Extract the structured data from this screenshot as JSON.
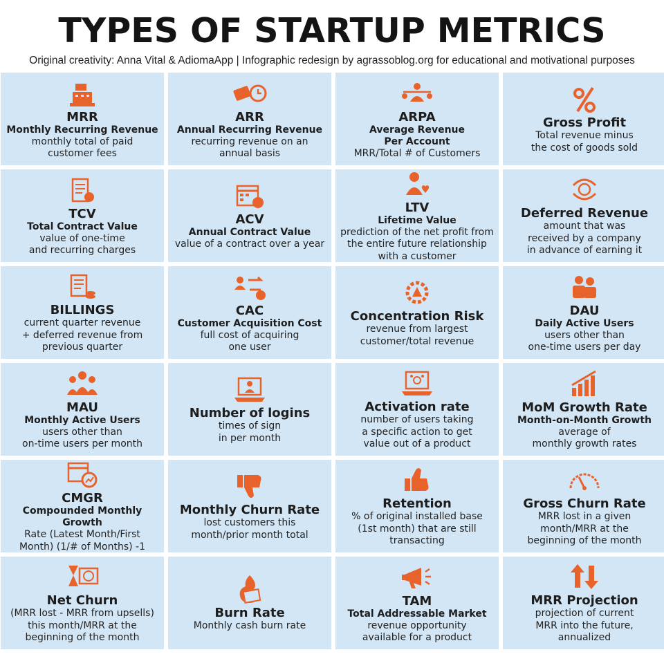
{
  "header": {
    "title": "TYPES OF STARTUP METRICS",
    "subtitle": "Original creativity: Anna Vital & AdiomaApp | Infographic redesign by agrassoblog.org for educational and motivational purposes"
  },
  "colors": {
    "accent": "#e8622c",
    "cell_bg": "#d3e6f5",
    "text": "#1d1d1d"
  },
  "metrics": [
    {
      "icon": "cash-register-icon",
      "name": "MRR",
      "full": "Monthly Recurring Revenue",
      "desc": "monthly total of paid\ncustomer fees"
    },
    {
      "icon": "money-clock-icon",
      "name": "ARR",
      "full": "Annual Recurring Revenue",
      "desc": "recurring revenue on an\nannual basis"
    },
    {
      "icon": "balance-person-icon",
      "name": "ARPA",
      "full": "Average Revenue\nPer Account",
      "desc": "MRR/Total # of Customers"
    },
    {
      "icon": "percent-icon",
      "name": "Gross Profit",
      "full": "",
      "desc": "Total revenue minus\nthe cost of goods sold"
    },
    {
      "icon": "contract-icon",
      "name": "TCV",
      "full": "Total Contract Value",
      "desc": "value of one-time\nand recurring charges"
    },
    {
      "icon": "calendar-money-icon",
      "name": "ACV",
      "full": "Annual Contract Value",
      "desc": "value of a contract over a year"
    },
    {
      "icon": "person-heart-icon",
      "name": "LTV",
      "full": "Lifetime Value",
      "desc": "prediction of the net profit from\nthe entire future relationship\nwith a customer"
    },
    {
      "icon": "money-cycle-icon",
      "name": "Deferred Revenue",
      "full": "",
      "desc": "amount that was\nreceived by a company\nin advance of earning it"
    },
    {
      "icon": "bill-coins-icon",
      "name": "BILLINGS",
      "full": "",
      "desc": "current quarter revenue\n+ deferred revenue from\nprevious quarter"
    },
    {
      "icon": "user-exchange-icon",
      "name": "CAC",
      "full": "Customer Acquisition Cost",
      "desc": "full cost of acquiring\none user"
    },
    {
      "icon": "gear-warning-icon",
      "name": "Concentration Risk",
      "full": "",
      "desc": "revenue from largest\ncustomer/total revenue"
    },
    {
      "icon": "users-pair-icon",
      "name": "DAU",
      "full": "Daily Active Users",
      "desc": "users other than\none-time users per day"
    },
    {
      "icon": "group-icon",
      "name": "MAU",
      "full": "Monthly Active Users",
      "desc": "users other than\non-time users per month"
    },
    {
      "icon": "laptop-user-icon",
      "name": "Number of logins",
      "full": "",
      "desc": "times of sign\nin per month"
    },
    {
      "icon": "laptop-network-icon",
      "name": "Activation rate",
      "full": "",
      "desc": "number of users taking\na specific action to get\nvalue out of a product"
    },
    {
      "icon": "bar-growth-icon",
      "name": "MoM Growth Rate",
      "full": "Month-on-Month Growth",
      "desc": "average of\nmonthly growth rates"
    },
    {
      "icon": "calendar-chart-icon",
      "name": "CMGR",
      "full": "Compounded Monthly Growth",
      "desc": "Rate (Latest Month/First\nMonth) (1/# of Months) -1"
    },
    {
      "icon": "thumbs-down-icon",
      "name": "Monthly Churn Rate",
      "full": "",
      "desc": "lost customers this\nmonth/prior month total"
    },
    {
      "icon": "thumbs-up-icon",
      "name": "Retention",
      "full": "",
      "desc": "% of original installed base\n(1st month) that are still\ntransacting"
    },
    {
      "icon": "gauge-icon",
      "name": "Gross Churn Rate",
      "full": "",
      "desc": "MRR lost in a given\nmonth/MRR at the\nbeginning of the month"
    },
    {
      "icon": "hourglass-money-icon",
      "name": "Net Churn",
      "full": "",
      "desc": "(MRR lost - MRR from upsells)\nthis month/MRR at the\nbeginning of the month"
    },
    {
      "icon": "burning-money-icon",
      "name": "Burn Rate",
      "full": "",
      "desc": "Monthly cash burn rate"
    },
    {
      "icon": "megaphone-icon",
      "name": "TAM",
      "full": "Total Addressable Market",
      "desc": "revenue opportunity\navailable for a product"
    },
    {
      "icon": "up-down-arrows-icon",
      "name": "MRR Projection",
      "full": "",
      "desc": "projection of current\nMRR into the future,\nannualized"
    }
  ]
}
